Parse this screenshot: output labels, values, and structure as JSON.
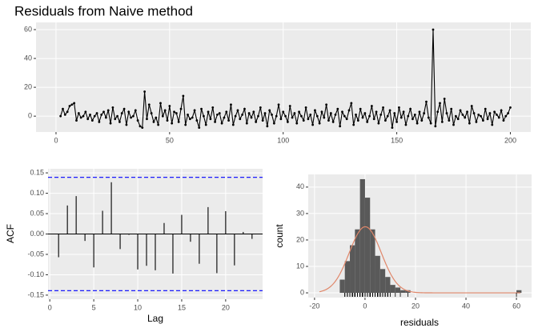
{
  "chart_data": [
    {
      "type": "line",
      "title": "Residuals from Naive method",
      "color": "#000000",
      "markers": true,
      "grid": true,
      "x": [
        1,
        2,
        3,
        4,
        5,
        6,
        7,
        8,
        9,
        10,
        11,
        12,
        13,
        14,
        15,
        16,
        17,
        18,
        19,
        20,
        21,
        22,
        23,
        24,
        25,
        26,
        27,
        28,
        29,
        30,
        31,
        32,
        33,
        34,
        35,
        36,
        37,
        38,
        39,
        40,
        41,
        42,
        43,
        44,
        45,
        46,
        47,
        48,
        49,
        50,
        51,
        52,
        53,
        54,
        55,
        56,
        57,
        58,
        59,
        60,
        61,
        62,
        63,
        64,
        65,
        66,
        67,
        68,
        69,
        70,
        71,
        72,
        73,
        74,
        75,
        76,
        77,
        78,
        79,
        80,
        81,
        82,
        83,
        84,
        85,
        86,
        87,
        88,
        89,
        90,
        91,
        92,
        93,
        94,
        95,
        96,
        97,
        98,
        99,
        100,
        101,
        102,
        103,
        104,
        105,
        106,
        107,
        108,
        109,
        110,
        111,
        112,
        113,
        114,
        115,
        116,
        117,
        118,
        119,
        120,
        121,
        122,
        123,
        124,
        125,
        126,
        127,
        128,
        129,
        130,
        131,
        132,
        133,
        134,
        135,
        136,
        137,
        138,
        139,
        140,
        141,
        142,
        143,
        144,
        145,
        146,
        147,
        148,
        149,
        150,
        151,
        152,
        153,
        154,
        155,
        156,
        157,
        158,
        159,
        160,
        161,
        162,
        163,
        164,
        165,
        166,
        167,
        168,
        169,
        170,
        171,
        172,
        173,
        174,
        175,
        176,
        177,
        178,
        179,
        180,
        181,
        182,
        183,
        184,
        185,
        186,
        187,
        188,
        189,
        190,
        191,
        192,
        193,
        194,
        195,
        196,
        197,
        198,
        199,
        200
      ],
      "values": [
        null,
        0,
        5,
        1,
        3,
        7,
        8,
        9,
        -3,
        2,
        -1,
        0,
        3,
        -2,
        1,
        -3,
        0,
        2,
        -4,
        1,
        3,
        -1,
        4,
        -5,
        6,
        -2,
        0,
        -4,
        2,
        5,
        -6,
        3,
        -1,
        0,
        4,
        -3,
        -7,
        -8,
        17,
        -2,
        8,
        2,
        -4,
        -1,
        -6,
        9,
        0,
        4,
        -3,
        7,
        -5,
        3,
        2,
        -4,
        5,
        14,
        -6,
        1,
        -2,
        -1,
        4,
        -3,
        -8,
        5,
        0,
        -6,
        3,
        -2,
        6,
        -4,
        1,
        2,
        -5,
        -1,
        3,
        -3,
        8,
        -6,
        0,
        4,
        -2,
        1,
        5,
        -5,
        2,
        -1,
        3,
        -4,
        0,
        6,
        -3,
        2,
        -7,
        4,
        1,
        -5,
        0,
        8,
        -2,
        3,
        0,
        -4,
        7,
        -1,
        2,
        -5,
        3,
        0,
        -3,
        6,
        -2,
        1,
        -6,
        4,
        0,
        -5,
        3,
        -1,
        8,
        -3,
        2,
        -4,
        1,
        5,
        -7,
        3,
        0,
        -2,
        4,
        9,
        -6,
        1,
        -3,
        5,
        -1,
        2,
        -4,
        0,
        7,
        -2,
        3,
        -5,
        1,
        6,
        -3,
        0,
        4,
        -8,
        2,
        -4,
        6,
        -1,
        3,
        -6,
        0,
        5,
        -2,
        1,
        -5,
        3,
        -3,
        2,
        10,
        -1,
        -5,
        60,
        -7,
        3,
        9,
        -4,
        12,
        2,
        -3,
        5,
        -6,
        0,
        -2,
        4,
        1,
        -1,
        3,
        -5,
        7,
        2,
        -4,
        1,
        0,
        -3,
        5,
        -2,
        2,
        -6,
        3,
        1,
        -1,
        4,
        -3,
        0,
        2,
        6
      ],
      "xlim": [
        -8.8,
        209
      ],
      "ylim": [
        -11,
        65
      ],
      "xticks": [
        0,
        50,
        100,
        150,
        200
      ],
      "yticks": [
        0,
        20,
        40,
        60
      ]
    },
    {
      "type": "acf",
      "xlabel": "Lag",
      "ylabel": "ACF",
      "color": "#000000",
      "grid": true,
      "x": [
        1,
        2,
        3,
        4,
        5,
        6,
        7,
        8,
        9,
        10,
        11,
        12,
        13,
        14,
        15,
        16,
        17,
        18,
        19,
        20,
        21,
        22,
        23
      ],
      "values": [
        -0.057,
        0.07,
        0.093,
        -0.017,
        -0.082,
        0.057,
        0.127,
        -0.037,
        -0.002,
        -0.087,
        -0.078,
        -0.089,
        0.027,
        -0.097,
        0.047,
        -0.019,
        -0.073,
        0.066,
        -0.096,
        0.056,
        -0.077,
        0.005,
        -0.012
      ],
      "threshold_lines": [
        0.139,
        -0.139
      ],
      "threshold_color": "#0000ff",
      "xlim": [
        -0.2,
        24.2
      ],
      "ylim": [
        -0.16,
        0.16
      ],
      "xticks": [
        0,
        5,
        10,
        15,
        20
      ],
      "yticks": [
        -0.15,
        {
          "value": -0.1,
          "label": "-0.10"
        },
        {
          "value": -0.05,
          "label": "-0.05"
        },
        {
          "value": 0,
          "label": "0.00"
        },
        {
          "value": 0.05,
          "label": "0.05"
        },
        {
          "value": 0.1,
          "label": "0.10"
        },
        0.15
      ]
    },
    {
      "type": "histogram",
      "xlabel": "residuals",
      "ylabel": "count",
      "color": "#595959",
      "grid": true,
      "rug": true,
      "bins": [
        -10,
        -8,
        -6,
        -4,
        -2,
        0,
        2,
        4,
        6,
        8,
        10,
        12,
        14,
        16,
        18,
        20,
        22,
        24,
        26,
        28,
        30,
        32,
        34,
        36,
        38,
        40,
        42,
        44,
        46,
        48,
        50,
        52,
        54,
        56,
        58,
        60,
        62
      ],
      "counts": [
        5,
        12,
        18,
        24,
        43,
        36,
        24,
        14,
        9,
        6,
        3,
        2,
        1,
        1,
        0,
        0,
        0,
        0,
        0,
        0,
        0,
        0,
        0,
        0,
        0,
        0,
        0,
        0,
        0,
        0,
        0,
        0,
        0,
        0,
        0,
        1
      ],
      "density": {
        "mean": 0.1,
        "sd": 6.35,
        "color": "#e0876a"
      },
      "xlim": [
        -22.5,
        66
      ],
      "ylim": [
        -1.8,
        44.8
      ],
      "xticks": [
        -20,
        0,
        20,
        40,
        60
      ],
      "yticks": [
        0,
        10,
        20,
        30,
        40
      ]
    }
  ]
}
